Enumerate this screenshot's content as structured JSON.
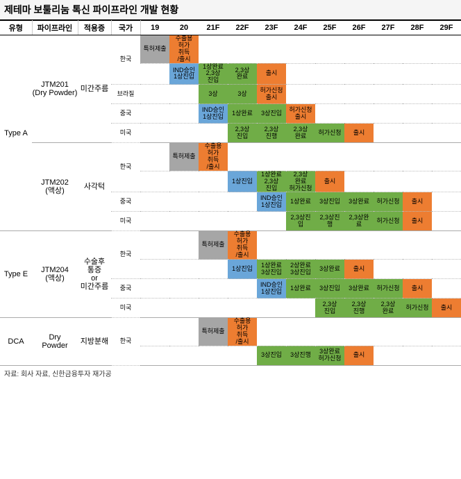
{
  "title": "제테마 보툴리눔 톡신 파이프라인 개발 현황",
  "source": "자료: 회사 자료, 신한금융투자 재가공",
  "colors": {
    "gray": "#a6a6a6",
    "blue": "#6aa6d9",
    "green": "#70ad47",
    "orange": "#ed7d31",
    "header_border": "#000000",
    "row_border": "#aaaaaa",
    "dotted_border": "#bbbbbb"
  },
  "fonts": {
    "title_pt": 14,
    "header_pt": 11,
    "cell_pt": 9,
    "source_pt": 10
  },
  "col_headers": {
    "type": "유형",
    "pipeline": "파이프라인",
    "indication": "적용증",
    "country": "국가",
    "years": [
      "19",
      "20",
      "21F",
      "22F",
      "23F",
      "24F",
      "25F",
      "26F",
      "27F",
      "28F",
      "29F"
    ]
  },
  "col_widths": {
    "type": 46,
    "pipeline": 66,
    "indication": 48,
    "country": 42,
    "year": 42
  },
  "rows": [
    {
      "hard": false,
      "type": "Type A",
      "type_span": 9,
      "pipeline": "JTM201\n(Dry Powder)",
      "pipeline_span": 5,
      "indication": "미간주름",
      "indication_span": 5,
      "country": "한국",
      "country_span": 2,
      "cells": [
        {
          "y": 0,
          "c": "gray",
          "t": "특허제출"
        },
        {
          "y": 1,
          "c": "orange",
          "t": "수출용\n허가\n취득\n/출시"
        }
      ]
    },
    {
      "hard": false,
      "cells": [
        {
          "y": 1,
          "c": "blue",
          "t": "IND승인\n1상진입"
        },
        {
          "y": 2,
          "c": "green",
          "t": "1상완료\n2,3상\n진입"
        },
        {
          "y": 3,
          "c": "green",
          "t": "2,3상\n완료"
        },
        {
          "y": 4,
          "c": "orange",
          "t": "출시"
        }
      ]
    },
    {
      "hard": false,
      "country": "브라질",
      "country_span": 1,
      "cells": [
        {
          "y": 2,
          "c": "green",
          "t": "3상"
        },
        {
          "y": 3,
          "c": "green",
          "t": "3상"
        },
        {
          "y": 4,
          "c": "orange",
          "t": "허가신청\n출시"
        }
      ]
    },
    {
      "hard": false,
      "country": "중국",
      "country_span": 1,
      "cells": [
        {
          "y": 2,
          "c": "blue",
          "t": "IND승인\n1상진입"
        },
        {
          "y": 3,
          "c": "green",
          "t": "1상완료"
        },
        {
          "y": 4,
          "c": "green",
          "t": "3상진입"
        },
        {
          "y": 5,
          "c": "orange",
          "t": "허가신청\n출시"
        }
      ]
    },
    {
      "hard": true,
      "country": "미국",
      "country_span": 1,
      "cells": [
        {
          "y": 3,
          "c": "green",
          "t": "2,3상\n진입"
        },
        {
          "y": 4,
          "c": "green",
          "t": "2,3상\n진행"
        },
        {
          "y": 5,
          "c": "green",
          "t": "2,3상\n완료"
        },
        {
          "y": 6,
          "c": "green",
          "t": "허가신청"
        },
        {
          "y": 7,
          "c": "orange",
          "t": "출시"
        }
      ]
    },
    {
      "hard": false,
      "pipeline": "JTM202\n(액상)",
      "pipeline_span": 4,
      "indication": "사각턱",
      "indication_span": 4,
      "country": "한국",
      "country_span": 2,
      "cells": [
        {
          "y": 1,
          "c": "gray",
          "t": "특허제출"
        },
        {
          "y": 2,
          "c": "orange",
          "t": "수출용\n허가\n취득\n/출시"
        }
      ]
    },
    {
      "hard": false,
      "cells": [
        {
          "y": 3,
          "c": "blue",
          "t": "1상진입"
        },
        {
          "y": 4,
          "c": "green",
          "t": "1상완료\n2,3상\n진입"
        },
        {
          "y": 5,
          "c": "green",
          "t": "2,3상\n완료\n허가신청"
        },
        {
          "y": 6,
          "c": "orange",
          "t": "출시"
        }
      ]
    },
    {
      "hard": false,
      "country": "중국",
      "country_span": 1,
      "cells": [
        {
          "y": 4,
          "c": "blue",
          "t": "IND승인\n1상진입"
        },
        {
          "y": 5,
          "c": "green",
          "t": "1상완료"
        },
        {
          "y": 6,
          "c": "green",
          "t": "3상진입"
        },
        {
          "y": 7,
          "c": "green",
          "t": "3상완료"
        },
        {
          "y": 8,
          "c": "green",
          "t": "허가신청"
        },
        {
          "y": 9,
          "c": "orange",
          "t": "출시"
        }
      ]
    },
    {
      "hard": true,
      "country": "미국",
      "country_span": 1,
      "cells": [
        {
          "y": 5,
          "c": "green",
          "t": "2,3상진\n입"
        },
        {
          "y": 6,
          "c": "green",
          "t": "2,3상진\n행"
        },
        {
          "y": 7,
          "c": "green",
          "t": "2,3상완\n료"
        },
        {
          "y": 8,
          "c": "green",
          "t": "허가신청"
        },
        {
          "y": 9,
          "c": "orange",
          "t": "출시"
        }
      ]
    },
    {
      "hard": false,
      "type": "Type E",
      "type_span": 4,
      "pipeline": "JTM204\n(액상)",
      "pipeline_span": 4,
      "indication": "수술후\n통증\nor\n미간주름",
      "indication_span": 4,
      "country": "한국",
      "country_span": 2,
      "cells": [
        {
          "y": 2,
          "c": "gray",
          "t": "특허제출"
        },
        {
          "y": 3,
          "c": "orange",
          "t": "수출용\n허가\n취득\n/출시"
        }
      ]
    },
    {
      "hard": false,
      "cells": [
        {
          "y": 3,
          "c": "blue",
          "t": "1상진입"
        },
        {
          "y": 4,
          "c": "green",
          "t": "1상완료\n3상진입"
        },
        {
          "y": 5,
          "c": "green",
          "t": "2상완료\n3상진입"
        },
        {
          "y": 6,
          "c": "green",
          "t": "3상완료"
        },
        {
          "y": 7,
          "c": "orange",
          "t": "출시"
        }
      ]
    },
    {
      "hard": false,
      "country": "중국",
      "country_span": 1,
      "cells": [
        {
          "y": 4,
          "c": "blue",
          "t": "IND승인\n1상진입"
        },
        {
          "y": 5,
          "c": "green",
          "t": "1상완료"
        },
        {
          "y": 6,
          "c": "green",
          "t": "3상진입"
        },
        {
          "y": 7,
          "c": "green",
          "t": "3상완료"
        },
        {
          "y": 8,
          "c": "green",
          "t": "허가신청"
        },
        {
          "y": 9,
          "c": "orange",
          "t": "출시"
        }
      ]
    },
    {
      "hard": true,
      "country": "미국",
      "country_span": 1,
      "cells": [
        {
          "y": 6,
          "c": "green",
          "t": "2,3상\n진입"
        },
        {
          "y": 7,
          "c": "green",
          "t": "2,3상\n진행"
        },
        {
          "y": 8,
          "c": "green",
          "t": "2,3상\n완료"
        },
        {
          "y": 9,
          "c": "green",
          "t": "허가신청"
        },
        {
          "y": 10,
          "c": "orange",
          "t": "출시"
        }
      ]
    },
    {
      "hard": false,
      "type": "DCA",
      "type_span": 2,
      "pipeline": "Dry\nPowder",
      "pipeline_span": 2,
      "indication": "지방분해",
      "indication_span": 2,
      "country": "한국",
      "country_span": 2,
      "cells": [
        {
          "y": 2,
          "c": "gray",
          "t": "특허제출"
        },
        {
          "y": 3,
          "c": "orange",
          "t": "수출용\n허가\n취득\n/출시"
        }
      ]
    },
    {
      "hard": true,
      "cells": [
        {
          "y": 4,
          "c": "green",
          "t": "3상진입"
        },
        {
          "y": 5,
          "c": "green",
          "t": "3상진행"
        },
        {
          "y": 6,
          "c": "green",
          "t": "3상완료\n허가신청"
        },
        {
          "y": 7,
          "c": "orange",
          "t": "출시"
        }
      ]
    }
  ]
}
